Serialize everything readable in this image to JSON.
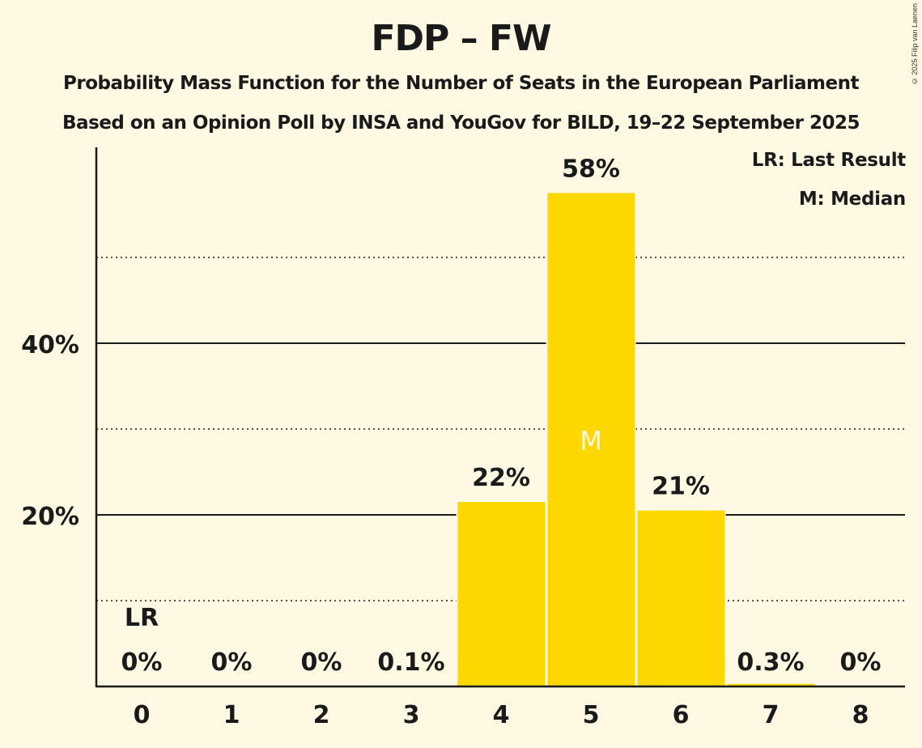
{
  "title": "FDP – FW",
  "subtitle1": "Probability Mass Function for the Number of Seats in the European Parliament",
  "subtitle2": "Based on an Opinion Poll by INSA and YouGov for BILD, 19–22 September 2025",
  "copyright": "© 2025 Filip van Laenen",
  "legend": {
    "lr": "LR: Last Result",
    "median": "M: Median"
  },
  "colors": {
    "bar": "#FFD700",
    "background": "#FFF8E3",
    "text": "#1a1a1a"
  },
  "chart_data": {
    "type": "bar",
    "title": "FDP – FW",
    "subtitle": "Probability Mass Function for the Number of Seats in the European Parliament",
    "xlabel": "",
    "ylabel": "",
    "categories": [
      "0",
      "1",
      "2",
      "3",
      "4",
      "5",
      "6",
      "7",
      "8"
    ],
    "values": [
      0,
      0,
      0,
      0.1,
      21.5,
      57.5,
      20.5,
      0.3,
      0
    ],
    "labels": [
      "0%",
      "0%",
      "0%",
      "0.1%",
      "22%",
      "58%",
      "21%",
      "0.3%",
      "0%"
    ],
    "ylim": [
      0,
      62
    ],
    "yticks_major": [
      20,
      40
    ],
    "ytick_labels": [
      "20%",
      "40%"
    ],
    "yticks_minor": [
      10,
      30,
      50
    ],
    "grid": true,
    "last_result_index": 0,
    "last_result_label": "LR",
    "median_index": 5,
    "median_label": "M",
    "legend_position": "top-right"
  }
}
